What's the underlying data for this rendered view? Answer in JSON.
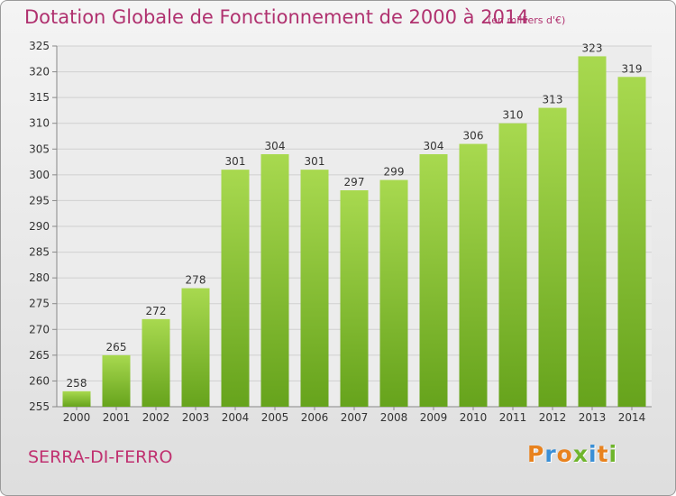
{
  "title": "Dotation Globale de Fonctionnement de 2000 à 2014",
  "subtitle": "(en milliers d'€)",
  "commune": "SERRA-DI-FERRO",
  "logo": {
    "letters": [
      {
        "ch": "P",
        "color": "#e8821e"
      },
      {
        "ch": "r",
        "color": "#3a8fd6"
      },
      {
        "ch": "o",
        "color": "#e8821e"
      },
      {
        "ch": "x",
        "color": "#6fb52c"
      },
      {
        "ch": "i",
        "color": "#3a8fd6"
      },
      {
        "ch": "t",
        "color": "#e8821e"
      },
      {
        "ch": "i",
        "color": "#6fb52c"
      }
    ]
  },
  "colors": {
    "bar_light": "#a8d94f",
    "bar_dark": "#66a31c",
    "title": "#b0316f",
    "grid": "#d0d0d0"
  },
  "chart_data": {
    "type": "bar",
    "categories": [
      "2000",
      "2001",
      "2002",
      "2003",
      "2004",
      "2005",
      "2006",
      "2007",
      "2008",
      "2009",
      "2010",
      "2011",
      "2012",
      "2013",
      "2014"
    ],
    "values": [
      258,
      265,
      272,
      278,
      301,
      304,
      301,
      297,
      299,
      304,
      306,
      310,
      313,
      323,
      319
    ],
    "ylim": [
      255,
      325
    ],
    "yticks": [
      255,
      260,
      265,
      270,
      275,
      280,
      285,
      290,
      295,
      300,
      305,
      310,
      315,
      320,
      325
    ],
    "grid": true,
    "xlabel": "",
    "ylabel": ""
  }
}
